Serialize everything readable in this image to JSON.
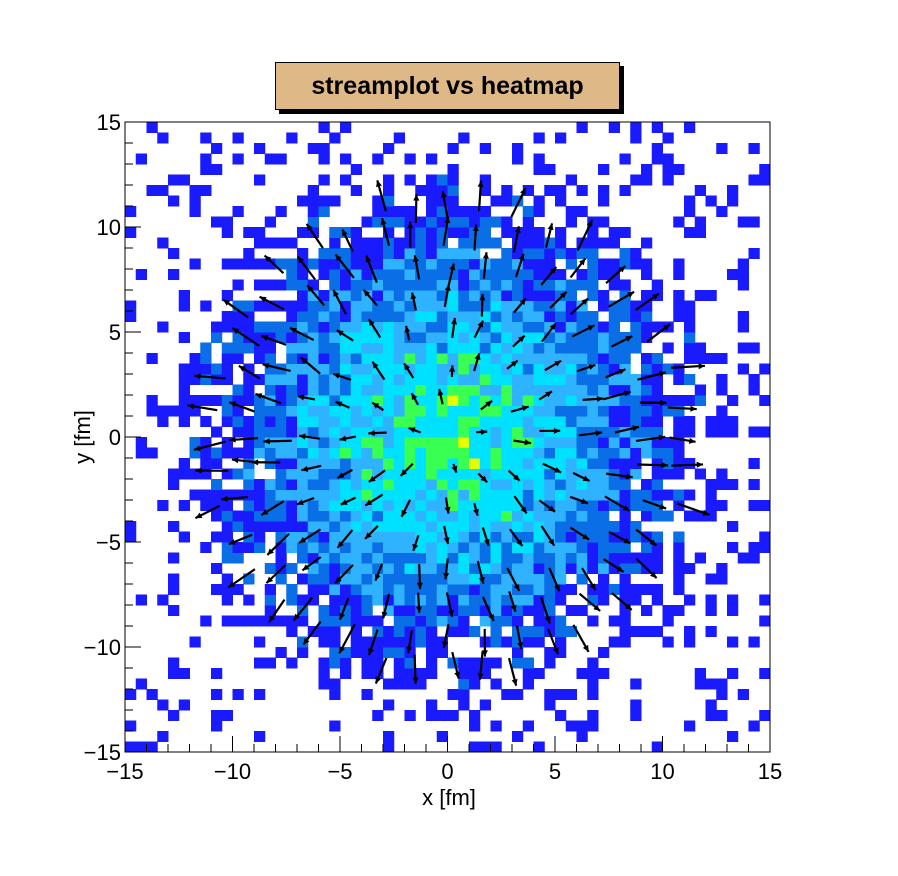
{
  "chart_data": {
    "type": "heatmap",
    "title": "streamplot vs heatmap",
    "xlabel": "x [fm]",
    "ylabel": "y [fm]",
    "xlim": [
      -15,
      15
    ],
    "ylim": [
      -15,
      15
    ],
    "x_ticks": [
      -15,
      -10,
      -5,
      0,
      5,
      10,
      15
    ],
    "y_ticks": [
      -15,
      -10,
      -5,
      0,
      5,
      10,
      15
    ],
    "x_tick_labels": [
      "−15",
      "−10",
      "−5",
      "0",
      "5",
      "10",
      "15"
    ],
    "y_tick_labels": [
      "−15",
      "−10",
      "−5",
      "0",
      "5",
      "10",
      "15"
    ],
    "grid": false,
    "legend": "none",
    "contour_colors": [
      "#1a1aff",
      "#0a6fe6",
      "#2fb2ff",
      "#00e1ff",
      "#38ff52",
      "#e6ff00",
      "#ff2b00"
    ],
    "density_profile": {
      "description": "noisy radially decreasing density centered at origin",
      "core_radius_fm": 5.5,
      "edge_radius_fm": 10
    },
    "overlay": {
      "type": "quiver",
      "arrow_color": "#000000",
      "pattern": "radial outward from origin",
      "grid_spacing_fm": 1.5,
      "extent_radius_fm": 11
    }
  }
}
